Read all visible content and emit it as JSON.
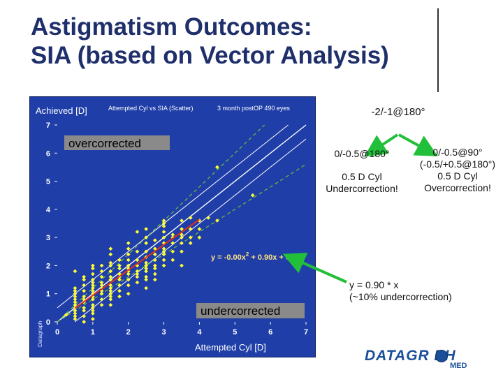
{
  "slide": {
    "title_line1": "Astigmatism Outcomes:",
    "title_line2": "SIA (based on Vector Analysis)"
  },
  "annotations": {
    "top": "-2/-1@180°",
    "left_1": "0/-0.5@180°",
    "left_2": "0.5 D Cyl",
    "left_3": "Undercorrection!",
    "right_1": "0/-0.5@90°",
    "right_2": "(-0.5/+0.5@180°)",
    "right_3": "0.5 D Cyl",
    "right_4": "Overcorrection!",
    "fit_1": "y = 0.90 * x",
    "fit_2": "(~10% undercorrection)"
  },
  "logo": {
    "main": "DATAGR  PH",
    "sub": "MED"
  },
  "colors": {
    "plot_bg": "#1f3ea8",
    "points": "#ffff33",
    "fit_line": "#e03020",
    "arrow": "#22c03a",
    "guide_dashed": "#6fbf3a"
  },
  "chart_data": {
    "type": "scatter",
    "header_ylabel": "Achieved [D]",
    "header_title": "Attempted Cyl vs SIA (Scatter)",
    "header_subtitle": "3 month postOP 490 eyes",
    "xlabel": "Attempted Cyl [D]",
    "watermark": "Datagraph",
    "xlim": [
      0,
      7
    ],
    "ylim": [
      0,
      7
    ],
    "xticks": [
      "0",
      "1",
      "2",
      "3",
      "4",
      "5",
      "6",
      "7"
    ],
    "yticks": [
      "0",
      "1",
      "2",
      "3",
      "4",
      "5",
      "6",
      "7"
    ],
    "grid": false,
    "region_labels": {
      "over": "overcorrected",
      "under": "undercorrected"
    },
    "equation_prefix": "y = -0.00x",
    "equation_exp": "2",
    "equation_suffix": " + 0.90x + 0.04",
    "fit": {
      "a": -0.0,
      "b": 0.9,
      "c": 0.04,
      "x_range": [
        0.5,
        4.0
      ]
    },
    "guides": {
      "identity": true,
      "parallel_solid_offset": 0.5,
      "dashed_slopes": [
        0.8,
        1.2
      ]
    },
    "points": [
      [
        0.5,
        0.1
      ],
      [
        0.5,
        0.3
      ],
      [
        0.5,
        0.4
      ],
      [
        0.5,
        0.6
      ],
      [
        0.5,
        0.7
      ],
      [
        0.5,
        0.8
      ],
      [
        0.5,
        1.0
      ],
      [
        0.5,
        1.1
      ],
      [
        0.5,
        1.2
      ],
      [
        0.5,
        0.2
      ],
      [
        0.5,
        0.5
      ],
      [
        0.5,
        0.9
      ],
      [
        0.5,
        1.8
      ],
      [
        0.25,
        0.25
      ],
      [
        0.75,
        0.0
      ],
      [
        0.75,
        0.2
      ],
      [
        0.75,
        0.4
      ],
      [
        0.75,
        0.5
      ],
      [
        0.75,
        0.7
      ],
      [
        0.75,
        0.9
      ],
      [
        0.75,
        1.1
      ],
      [
        0.75,
        1.3
      ],
      [
        0.75,
        1.5
      ],
      [
        0.75,
        0.8
      ],
      [
        0.75,
        1.6
      ],
      [
        1.0,
        0.1
      ],
      [
        1.0,
        0.3
      ],
      [
        1.0,
        0.5
      ],
      [
        1.0,
        0.6
      ],
      [
        1.0,
        0.8
      ],
      [
        1.0,
        0.9
      ],
      [
        1.0,
        1.0
      ],
      [
        1.0,
        1.1
      ],
      [
        1.0,
        1.2
      ],
      [
        1.0,
        1.4
      ],
      [
        1.0,
        1.5
      ],
      [
        1.0,
        1.7
      ],
      [
        1.0,
        1.9
      ],
      [
        1.0,
        0.4
      ],
      [
        1.0,
        1.3
      ],
      [
        1.0,
        2.0
      ],
      [
        1.25,
        0.6
      ],
      [
        1.25,
        0.8
      ],
      [
        1.25,
        1.0
      ],
      [
        1.25,
        1.1
      ],
      [
        1.25,
        1.3
      ],
      [
        1.25,
        1.4
      ],
      [
        1.25,
        1.6
      ],
      [
        1.25,
        1.8
      ],
      [
        1.25,
        2.0
      ],
      [
        1.25,
        1.2
      ],
      [
        1.5,
        0.6
      ],
      [
        1.5,
        0.8
      ],
      [
        1.5,
        0.9
      ],
      [
        1.5,
        1.1
      ],
      [
        1.5,
        1.2
      ],
      [
        1.5,
        1.3
      ],
      [
        1.5,
        1.5
      ],
      [
        1.5,
        1.6
      ],
      [
        1.5,
        1.8
      ],
      [
        1.5,
        2.0
      ],
      [
        1.5,
        2.1
      ],
      [
        1.5,
        2.4
      ],
      [
        1.5,
        2.6
      ],
      [
        1.5,
        1.0
      ],
      [
        1.75,
        0.9
      ],
      [
        1.75,
        1.1
      ],
      [
        1.75,
        1.3
      ],
      [
        1.75,
        1.5
      ],
      [
        1.75,
        1.7
      ],
      [
        1.75,
        1.9
      ],
      [
        1.75,
        2.0
      ],
      [
        1.75,
        2.2
      ],
      [
        1.75,
        1.6
      ],
      [
        2.0,
        1.0
      ],
      [
        2.0,
        1.3
      ],
      [
        2.0,
        1.5
      ],
      [
        2.0,
        1.7
      ],
      [
        2.0,
        1.8
      ],
      [
        2.0,
        2.0
      ],
      [
        2.0,
        2.2
      ],
      [
        2.0,
        2.4
      ],
      [
        2.0,
        2.6
      ],
      [
        2.0,
        2.8
      ],
      [
        2.0,
        1.9
      ],
      [
        2.25,
        1.4
      ],
      [
        2.25,
        1.6
      ],
      [
        2.25,
        1.8
      ],
      [
        2.25,
        2.0
      ],
      [
        2.25,
        2.2
      ],
      [
        2.25,
        2.5
      ],
      [
        2.25,
        3.2
      ],
      [
        2.25,
        1.7
      ],
      [
        2.5,
        1.2
      ],
      [
        2.5,
        1.5
      ],
      [
        2.5,
        1.6
      ],
      [
        2.5,
        1.8
      ],
      [
        2.5,
        1.9
      ],
      [
        2.5,
        2.1
      ],
      [
        2.5,
        2.3
      ],
      [
        2.5,
        2.5
      ],
      [
        2.5,
        2.8
      ],
      [
        2.5,
        3.0
      ],
      [
        2.5,
        3.3
      ],
      [
        2.5,
        2.0
      ],
      [
        2.75,
        1.5
      ],
      [
        2.75,
        1.7
      ],
      [
        2.75,
        1.9
      ],
      [
        2.75,
        2.2
      ],
      [
        2.75,
        2.4
      ],
      [
        2.75,
        2.6
      ],
      [
        2.75,
        2.9
      ],
      [
        2.75,
        2.0
      ],
      [
        3.0,
        2.0
      ],
      [
        3.0,
        2.2
      ],
      [
        3.0,
        2.4
      ],
      [
        3.0,
        2.6
      ],
      [
        3.0,
        2.8
      ],
      [
        3.0,
        3.0
      ],
      [
        3.0,
        3.2
      ],
      [
        3.0,
        3.4
      ],
      [
        3.0,
        3.5
      ],
      [
        3.0,
        3.6
      ],
      [
        3.0,
        2.5
      ],
      [
        3.25,
        2.2
      ],
      [
        3.25,
        2.5
      ],
      [
        3.25,
        2.8
      ],
      [
        3.25,
        3.0
      ],
      [
        3.25,
        3.1
      ],
      [
        3.5,
        2.5
      ],
      [
        3.5,
        2.8
      ],
      [
        3.5,
        3.0
      ],
      [
        3.5,
        3.1
      ],
      [
        3.5,
        3.3
      ],
      [
        3.5,
        3.6
      ],
      [
        3.5,
        2.0
      ],
      [
        3.75,
        2.8
      ],
      [
        3.75,
        3.0
      ],
      [
        3.75,
        3.3
      ],
      [
        3.75,
        3.7
      ],
      [
        4.0,
        3.3
      ],
      [
        4.0,
        3.6
      ],
      [
        4.0,
        3.0
      ],
      [
        4.5,
        3.6
      ],
      [
        4.25,
        3.7
      ],
      [
        4.5,
        5.5
      ],
      [
        5.5,
        4.5
      ]
    ]
  }
}
